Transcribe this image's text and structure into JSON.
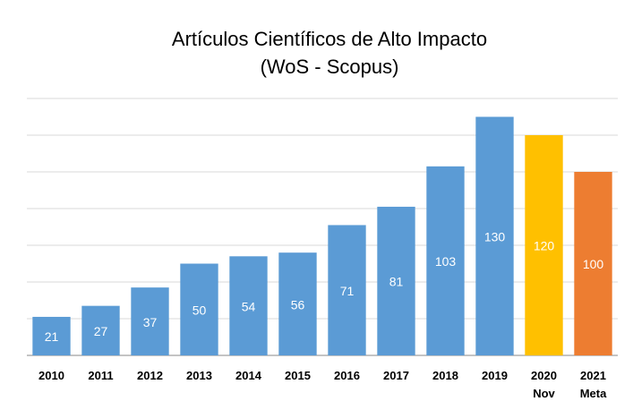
{
  "chart_data": {
    "type": "bar",
    "title": "Artículos Científicos de Alto Impacto",
    "subtitle": "(WoS - Scopus)",
    "categories": [
      "2010",
      "2011",
      "2012",
      "2013",
      "2014",
      "2015",
      "2016",
      "2017",
      "2018",
      "2019",
      "2020\nNov",
      "2021\nMeta"
    ],
    "values": [
      21,
      27,
      37,
      50,
      54,
      56,
      71,
      81,
      103,
      130,
      120,
      100
    ],
    "colors": [
      "#5b9bd5",
      "#5b9bd5",
      "#5b9bd5",
      "#5b9bd5",
      "#5b9bd5",
      "#5b9bd5",
      "#5b9bd5",
      "#5b9bd5",
      "#5b9bd5",
      "#5b9bd5",
      "#ffc000",
      "#ed7d31"
    ],
    "ylim": [
      0,
      140
    ],
    "yticks": [
      0,
      20,
      40,
      60,
      80,
      100,
      120,
      140
    ],
    "grid": true
  }
}
